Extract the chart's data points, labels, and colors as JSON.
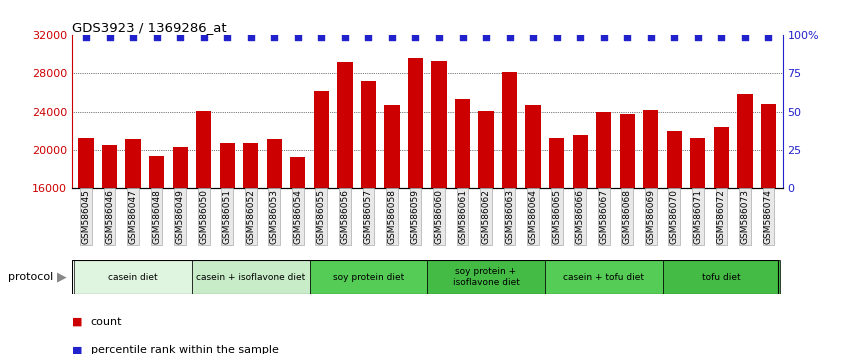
{
  "title": "GDS3923 / 1369286_at",
  "samples": [
    "GSM586045",
    "GSM586046",
    "GSM586047",
    "GSM586048",
    "GSM586049",
    "GSM586050",
    "GSM586051",
    "GSM586052",
    "GSM586053",
    "GSM586054",
    "GSM586055",
    "GSM586056",
    "GSM586057",
    "GSM586058",
    "GSM586059",
    "GSM586060",
    "GSM586061",
    "GSM586062",
    "GSM586063",
    "GSM586064",
    "GSM586065",
    "GSM586066",
    "GSM586067",
    "GSM586068",
    "GSM586069",
    "GSM586070",
    "GSM586071",
    "GSM586072",
    "GSM586073",
    "GSM586074"
  ],
  "values": [
    21200,
    20500,
    21100,
    19300,
    20300,
    24100,
    20700,
    20700,
    21100,
    19200,
    26200,
    29200,
    27200,
    24700,
    29600,
    29300,
    25300,
    24100,
    28200,
    24700,
    21200,
    21500,
    23900,
    23700,
    24200,
    22000,
    21200,
    22400,
    25800,
    24800
  ],
  "bar_color": "#cc0000",
  "percentile_color": "#2222cc",
  "ylim_left": [
    16000,
    32000
  ],
  "yticks_left": [
    16000,
    20000,
    24000,
    28000,
    32000
  ],
  "ytick_labels_right": [
    "0",
    "25",
    "50",
    "75",
    "100%"
  ],
  "right_pct": [
    0,
    25,
    50,
    75,
    100
  ],
  "groups": [
    {
      "label": "casein diet",
      "start": 0,
      "end": 5,
      "color": "#e0f5e0"
    },
    {
      "label": "casein + isoflavone diet",
      "start": 5,
      "end": 10,
      "color": "#c8ecc8"
    },
    {
      "label": "soy protein diet",
      "start": 10,
      "end": 15,
      "color": "#55cc55"
    },
    {
      "label": "soy protein +\nisoflavone diet",
      "start": 15,
      "end": 20,
      "color": "#44bb44"
    },
    {
      "label": "casein + tofu diet",
      "start": 20,
      "end": 25,
      "color": "#55cc55"
    },
    {
      "label": "tofu diet",
      "start": 25,
      "end": 30,
      "color": "#44bb44"
    }
  ],
  "legend_count_label": "count",
  "legend_percentile_label": "percentile rank within the sample",
  "protocol_label": "protocol"
}
